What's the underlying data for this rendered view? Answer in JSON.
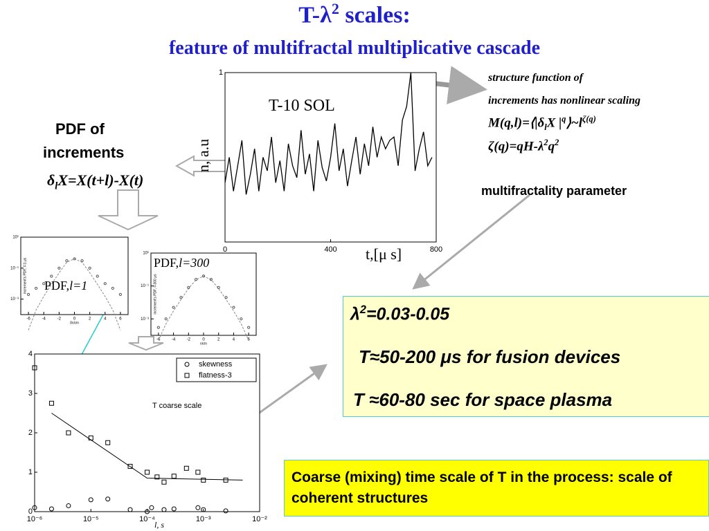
{
  "title": [
    "T-λ",
    "2",
    " scales:"
  ],
  "subtitle": "feature of multifractal multiplicative cascade",
  "pdf_text": {
    "line1": "PDF of",
    "line2": "increments",
    "formula": [
      "δ",
      "l",
      "X=X(t+l)-X(t)"
    ]
  },
  "structure_text": {
    "line1": "structure function of",
    "line2": "increments has nonlinear scaling",
    "formula1": [
      "M(q,l)=⟨|δ",
      "l",
      "X |",
      "q",
      "⟩~l",
      "ζ(q)"
    ],
    "formula2": [
      "ζ(q)=qH-λ",
      "2",
      "q",
      "2"
    ]
  },
  "multifractality": "multifractality  parameter",
  "results_box": {
    "line1": [
      "λ",
      "2",
      "=0.03-0.05"
    ],
    "line2": "T≈50-200 μs for fusion devices",
    "line3": "T ≈60-80 sec for space plasma"
  },
  "conclusion_box": "Coarse (mixing) time scale of T in the process: scale of coherent structures",
  "chart_data": [
    {
      "type": "line",
      "label": "T-10 SOL",
      "ylabel": "n, a.u",
      "xlabel": "t,[μ s]",
      "xlim": [
        0,
        800
      ],
      "xticks": [
        0,
        400,
        800
      ],
      "ylim": [
        0,
        1
      ],
      "yticks": [
        1
      ],
      "color": "#000000",
      "x": [
        0,
        16,
        32,
        48,
        64,
        80,
        96,
        112,
        128,
        144,
        160,
        176,
        192,
        208,
        224,
        240,
        256,
        272,
        288,
        304,
        320,
        336,
        352,
        368,
        384,
        400,
        416,
        432,
        448,
        464,
        480,
        496,
        512,
        528,
        544,
        560,
        576,
        592,
        608,
        624,
        640,
        656,
        672,
        688,
        704,
        720,
        736,
        752,
        768,
        784
      ],
      "values": [
        0.35,
        0.5,
        0.3,
        0.45,
        0.6,
        0.28,
        0.4,
        0.55,
        0.3,
        0.5,
        0.42,
        0.62,
        0.35,
        0.48,
        0.3,
        0.58,
        0.45,
        0.38,
        0.66,
        0.4,
        0.52,
        0.3,
        0.6,
        0.44,
        0.36,
        0.5,
        0.7,
        0.42,
        0.55,
        0.33,
        0.48,
        0.62,
        0.4,
        0.58,
        0.45,
        0.68,
        0.5,
        0.62,
        0.55,
        0.6,
        0.62,
        0.45,
        0.72,
        0.8,
        1.0,
        0.42,
        0.55,
        0.65,
        0.45,
        0.5
      ]
    },
    {
      "type": "scatter",
      "label": [
        "PDF,",
        "l=1"
      ],
      "ylabel": "increment's PDF, l=1 μs",
      "xlabel": "δn/σn",
      "ylog": true,
      "xlim": [
        -7,
        7
      ],
      "xticks": [
        -6,
        -4,
        -2,
        0,
        2,
        4,
        6
      ],
      "ylim": [
        0.0001,
        10
      ],
      "yticks": [
        {
          "value": 10,
          "label": "10¹"
        },
        {
          "value": 0.1,
          "label": "10⁻¹"
        },
        {
          "value": 0.001,
          "label": "10⁻³"
        }
      ],
      "x": [
        -6,
        -5,
        -4,
        -3,
        -2,
        -1,
        0,
        1,
        2,
        3,
        4,
        5,
        6
      ],
      "values": [
        0.002,
        0.005,
        0.01,
        0.03,
        0.1,
        0.3,
        0.4,
        0.3,
        0.1,
        0.03,
        0.01,
        0.005,
        0.002
      ],
      "fit": [
        1e-05,
        0.0002,
        0.0015,
        0.009,
        0.05,
        0.24,
        0.4,
        0.24,
        0.05,
        0.009,
        0.0015,
        0.0002,
        1e-05
      ],
      "color": "#555555"
    },
    {
      "type": "scatter",
      "label": [
        "PDF,",
        "l=300"
      ],
      "ylabel": "increment's PDF, l=300 μs",
      "xlabel": "n/σn",
      "ylog": true,
      "xlim": [
        -7,
        7
      ],
      "xticks": [
        -6,
        -4,
        -2,
        0,
        2,
        4,
        6
      ],
      "ylim": [
        0.0001,
        10
      ],
      "yticks": [
        {
          "value": 10,
          "label": "10¹"
        },
        {
          "value": 0.1,
          "label": "10⁻¹"
        },
        {
          "value": 0.001,
          "label": "10⁻³"
        }
      ],
      "x": [
        -6,
        -5,
        -4,
        -3,
        -2,
        -1,
        0,
        1,
        2,
        3,
        4,
        5,
        6
      ],
      "values": [
        0.0003,
        0.001,
        0.005,
        0.02,
        0.08,
        0.25,
        0.4,
        0.25,
        0.08,
        0.02,
        0.005,
        0.001,
        0.0003
      ],
      "fit": [
        5e-05,
        0.0005,
        0.003,
        0.015,
        0.07,
        0.24,
        0.4,
        0.24,
        0.07,
        0.015,
        0.003,
        0.0005,
        5e-05
      ],
      "color": "#555555"
    },
    {
      "type": "scatter",
      "xlabel": "l,  s",
      "xlog": true,
      "annotation": "T coarse scale",
      "legend": "upper right",
      "xlim": [
        1e-06,
        0.01
      ],
      "xticks": [
        {
          "value": 1e-06,
          "label": "10⁻⁶"
        },
        {
          "value": 1e-05,
          "label": "10⁻⁵"
        },
        {
          "value": 0.0001,
          "label": "10⁻⁴"
        },
        {
          "value": 0.001,
          "label": "10⁻³"
        },
        {
          "value": 0.01,
          "label": "10⁻²"
        }
      ],
      "ylim": [
        0,
        4
      ],
      "yticks": [
        0,
        1,
        2,
        3,
        4
      ],
      "series": [
        {
          "name": "skewness",
          "marker": "circle",
          "color": "#000000",
          "x": [
            1e-06,
            2e-06,
            4e-06,
            1e-05,
            2e-05,
            5e-05,
            0.0001,
            0.00012,
            0.0002,
            0.0003,
            0.0008,
            0.001,
            0.0025
          ],
          "values": [
            0.1,
            0.07,
            0.15,
            0.3,
            0.32,
            0.05,
            0.0,
            0.1,
            0.05,
            0.07,
            0.1,
            0.05,
            0.02
          ]
        },
        {
          "name": "flatness-3",
          "marker": "square",
          "color": "#000000",
          "x": [
            1e-06,
            2e-06,
            4e-06,
            1e-05,
            2e-05,
            5e-05,
            0.0001,
            0.00015,
            0.0002,
            0.0003,
            0.0005,
            0.0008,
            0.001,
            0.0025
          ],
          "values": [
            3.65,
            2.75,
            2.0,
            1.87,
            1.75,
            1.15,
            1.0,
            0.88,
            0.75,
            0.9,
            1.1,
            1.0,
            0.8,
            0.8
          ]
        }
      ],
      "fit": {
        "x": [
          2e-06,
          0.0001,
          0.005
        ],
        "values": [
          2.5,
          0.85,
          0.8
        ]
      }
    }
  ]
}
